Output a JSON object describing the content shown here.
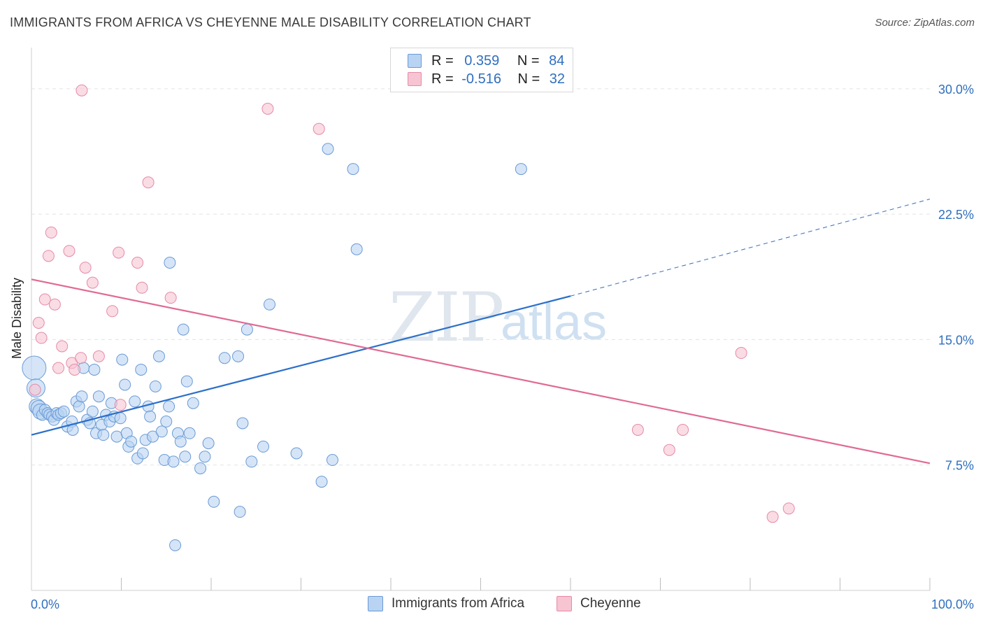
{
  "title": "IMMIGRANTS FROM AFRICA VS CHEYENNE MALE DISABILITY CORRELATION CHART",
  "source": "Source: ZipAtlas.com",
  "watermark": {
    "zip": "ZIP",
    "atlas": "atlas"
  },
  "legend_top": {
    "rows": [
      {
        "r_label": "R =",
        "r_value": "0.359",
        "n_label": "N =",
        "n_value": "84"
      },
      {
        "r_label": "R =",
        "r_value": "-0.516",
        "n_label": "N =",
        "n_value": "32"
      }
    ]
  },
  "legend_bottom": [
    "Immigrants from Africa",
    "Cheyenne"
  ],
  "colors": {
    "blue_fill": "#b9d3f2",
    "blue_stroke": "#6a9ad6",
    "blue_line": "#2b6fca",
    "pink_fill": "#f7c4d2",
    "pink_stroke": "#e68aa8",
    "pink_line": "#e06a94",
    "tick_text": "#2f6fbf",
    "grid": "#e3e3e3"
  },
  "chart_data": {
    "type": "scatter",
    "title": "IMMIGRANTS FROM AFRICA VS CHEYENNE MALE DISABILITY CORRELATION CHART",
    "xlabel": "",
    "ylabel": "Male Disability",
    "xlim": [
      0,
      100
    ],
    "ylim": [
      0,
      32
    ],
    "x_tick_labels": [
      "0.0%",
      "100.0%"
    ],
    "y_ticks": [
      7.5,
      15.0,
      22.5,
      30.0
    ],
    "y_tick_labels": [
      "7.5%",
      "15.0%",
      "22.5%",
      "30.0%"
    ],
    "grid": true,
    "legend_position": "bottom",
    "series": [
      {
        "name": "Immigrants from Africa",
        "r": 0.359,
        "n": 84,
        "trend": {
          "x": [
            0,
            60
          ],
          "y": [
            9.3,
            17.6
          ],
          "dashed_to": [
            100,
            23.4
          ]
        },
        "points": [
          [
            0.3,
            13.3
          ],
          [
            0.5,
            12.1
          ],
          [
            0.6,
            11.0
          ],
          [
            0.8,
            10.9
          ],
          [
            1.0,
            10.7
          ],
          [
            1.2,
            10.5
          ],
          [
            1.5,
            10.8
          ],
          [
            1.8,
            10.6
          ],
          [
            2.0,
            10.5
          ],
          [
            2.3,
            10.4
          ],
          [
            2.5,
            10.2
          ],
          [
            2.8,
            10.6
          ],
          [
            3.0,
            10.5
          ],
          [
            3.3,
            10.6
          ],
          [
            3.6,
            10.7
          ],
          [
            4.0,
            9.8
          ],
          [
            4.5,
            10.1
          ],
          [
            5.0,
            11.3
          ],
          [
            5.3,
            11.0
          ],
          [
            5.6,
            11.6
          ],
          [
            5.8,
            13.3
          ],
          [
            6.2,
            10.2
          ],
          [
            6.5,
            10.0
          ],
          [
            6.8,
            10.7
          ],
          [
            7.0,
            13.2
          ],
          [
            7.2,
            9.4
          ],
          [
            7.5,
            11.6
          ],
          [
            7.8,
            9.9
          ],
          [
            8.0,
            9.3
          ],
          [
            8.3,
            10.5
          ],
          [
            8.7,
            10.1
          ],
          [
            8.9,
            11.2
          ],
          [
            9.2,
            10.4
          ],
          [
            9.5,
            9.2
          ],
          [
            9.9,
            10.3
          ],
          [
            10.1,
            13.8
          ],
          [
            10.4,
            12.3
          ],
          [
            10.6,
            9.4
          ],
          [
            10.8,
            8.6
          ],
          [
            11.1,
            8.9
          ],
          [
            11.5,
            11.3
          ],
          [
            11.8,
            7.9
          ],
          [
            12.2,
            13.2
          ],
          [
            12.4,
            8.2
          ],
          [
            12.7,
            9.0
          ],
          [
            13.0,
            11.0
          ],
          [
            13.2,
            10.4
          ],
          [
            13.5,
            9.2
          ],
          [
            13.8,
            12.2
          ],
          [
            14.2,
            14.0
          ],
          [
            14.5,
            9.5
          ],
          [
            14.8,
            7.8
          ],
          [
            15.0,
            10.1
          ],
          [
            15.3,
            11.0
          ],
          [
            15.4,
            19.6
          ],
          [
            15.8,
            7.7
          ],
          [
            16.3,
            9.4
          ],
          [
            16.6,
            8.9
          ],
          [
            16.9,
            15.6
          ],
          [
            17.1,
            8.0
          ],
          [
            17.3,
            12.5
          ],
          [
            17.6,
            9.4
          ],
          [
            18.0,
            11.2
          ],
          [
            18.8,
            7.3
          ],
          [
            19.3,
            8.0
          ],
          [
            19.7,
            8.8
          ],
          [
            20.3,
            5.3
          ],
          [
            21.5,
            13.9
          ],
          [
            23.0,
            14.0
          ],
          [
            23.2,
            4.7
          ],
          [
            23.5,
            10.0
          ],
          [
            24.0,
            15.6
          ],
          [
            24.5,
            7.7
          ],
          [
            25.8,
            8.6
          ],
          [
            26.5,
            17.1
          ],
          [
            29.5,
            8.2
          ],
          [
            32.3,
            6.5
          ],
          [
            33.0,
            26.4
          ],
          [
            33.5,
            7.8
          ],
          [
            35.8,
            25.2
          ],
          [
            36.2,
            20.4
          ],
          [
            54.5,
            25.2
          ],
          [
            16.0,
            2.7
          ],
          [
            4.6,
            9.6
          ]
        ]
      },
      {
        "name": "Cheyenne",
        "r": -0.516,
        "n": 32,
        "trend": {
          "x": [
            0,
            100
          ],
          "y": [
            18.6,
            7.6
          ]
        },
        "points": [
          [
            0.4,
            12.0
          ],
          [
            0.8,
            16.0
          ],
          [
            1.1,
            15.1
          ],
          [
            1.5,
            17.4
          ],
          [
            1.9,
            20.0
          ],
          [
            2.2,
            21.4
          ],
          [
            2.6,
            17.1
          ],
          [
            3.0,
            13.3
          ],
          [
            3.4,
            14.6
          ],
          [
            4.2,
            20.3
          ],
          [
            4.5,
            13.6
          ],
          [
            4.8,
            13.2
          ],
          [
            5.5,
            13.9
          ],
          [
            6.0,
            19.3
          ],
          [
            6.8,
            18.4
          ],
          [
            7.5,
            14.0
          ],
          [
            9.0,
            16.7
          ],
          [
            9.7,
            20.2
          ],
          [
            9.9,
            11.1
          ],
          [
            11.8,
            19.6
          ],
          [
            12.3,
            18.1
          ],
          [
            13.0,
            24.4
          ],
          [
            15.5,
            17.5
          ],
          [
            5.6,
            29.9
          ],
          [
            26.3,
            28.8
          ],
          [
            32.0,
            27.6
          ],
          [
            67.5,
            9.6
          ],
          [
            71.0,
            8.4
          ],
          [
            72.5,
            9.6
          ],
          [
            79.0,
            14.2
          ],
          [
            82.5,
            4.4
          ],
          [
            84.3,
            4.9
          ]
        ]
      }
    ]
  }
}
